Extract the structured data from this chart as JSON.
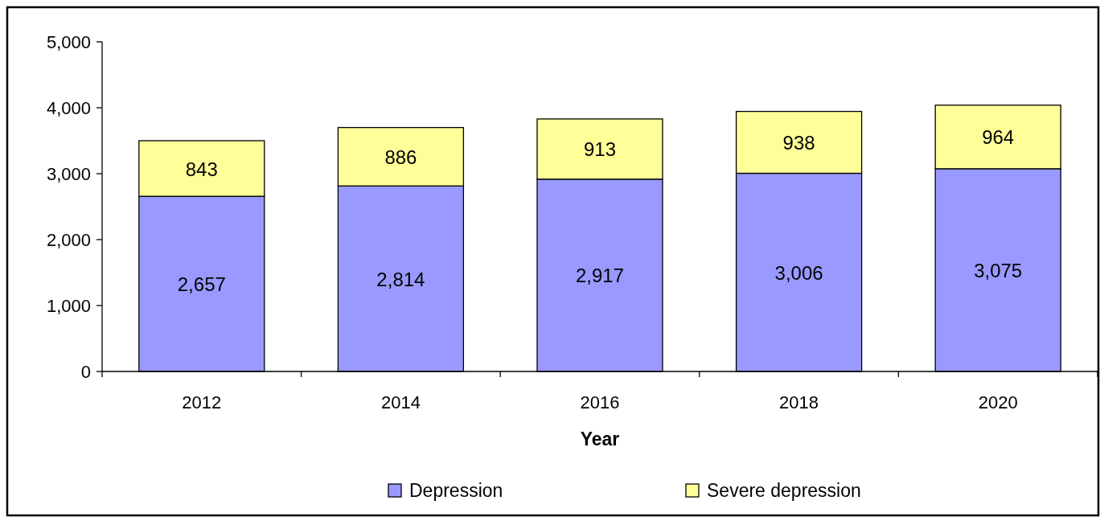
{
  "chart_data": {
    "type": "bar",
    "stacked": true,
    "xlabel": "Year",
    "categories": [
      "2012",
      "2014",
      "2016",
      "2018",
      "2020"
    ],
    "series": [
      {
        "name": "Depression",
        "color": "#9999ff",
        "values": [
          2657,
          2814,
          2917,
          3006,
          3075
        ],
        "value_labels": [
          "2,657",
          "2,814",
          "2,917",
          "3,006",
          "3,075"
        ]
      },
      {
        "name": "Severe depression",
        "color": "#ffff99",
        "values": [
          843,
          886,
          913,
          938,
          964
        ],
        "value_labels": [
          "843",
          "886",
          "913",
          "938",
          "964"
        ]
      }
    ],
    "ylim": [
      0,
      5000
    ],
    "yticks": [
      {
        "value": 0,
        "label": "0"
      },
      {
        "value": 1000,
        "label": "1,000"
      },
      {
        "value": 2000,
        "label": "2,000"
      },
      {
        "value": 3000,
        "label": "3,000"
      },
      {
        "value": 4000,
        "label": "4,000"
      },
      {
        "value": 5000,
        "label": "5,000"
      }
    ],
    "legend": "bottom",
    "grid": false
  }
}
